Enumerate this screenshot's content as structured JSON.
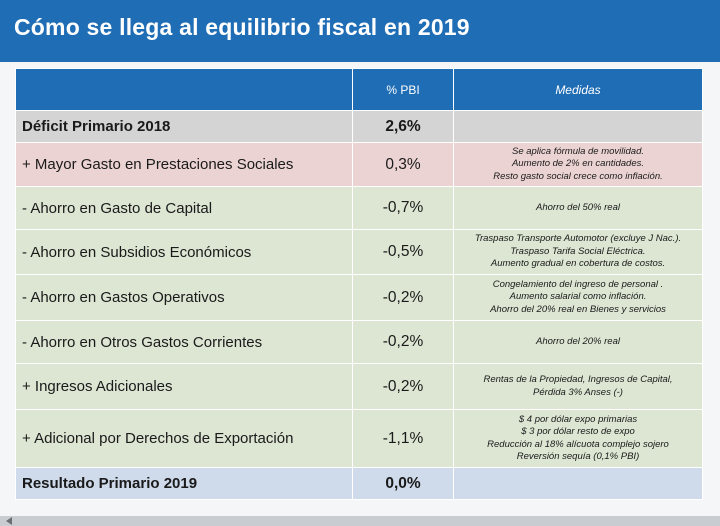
{
  "title": "Cómo se llega al equilibrio fiscal en 2019",
  "colors": {
    "title_bar": "#1f6db5",
    "header": "#1f6db5",
    "row_grey": "#d4d4d4",
    "row_pink": "#ecd3d3",
    "row_green": "#dce6d3",
    "row_blue": "#cfdaea"
  },
  "table": {
    "headers": {
      "concept": "",
      "pbi": "% PBI",
      "medidas": "Medidas"
    },
    "rows": [
      {
        "concept": "Déficit Primario 2018",
        "pbi": "2,6%",
        "medidas": []
      },
      {
        "concept": "+ Mayor Gasto en Prestaciones Sociales",
        "pbi": "0,3%",
        "medidas": [
          "Se aplica fórmula de movilidad.",
          "Aumento de 2% en cantidades.",
          "Resto gasto social crece como inflación."
        ]
      },
      {
        "concept": "- Ahorro en Gasto de Capital",
        "pbi": "-0,7%",
        "medidas": [
          "Ahorro del 50% real"
        ]
      },
      {
        "concept": "- Ahorro en Subsidios Económicos",
        "pbi": "-0,5%",
        "medidas": [
          "Traspaso Transporte Automotor (excluye J Nac.).",
          "Traspaso Tarifa Social Eléctrica.",
          "Aumento gradual en cobertura de costos."
        ]
      },
      {
        "concept": "- Ahorro en Gastos Operativos",
        "pbi": "-0,2%",
        "medidas": [
          "Congelamiento del ingreso de personal .",
          "Aumento salarial como inflación.",
          "Ahorro del 20% real en Bienes y servicios"
        ]
      },
      {
        "concept": "- Ahorro en Otros Gastos Corrientes",
        "pbi": "-0,2%",
        "medidas": [
          "Ahorro del 20% real"
        ]
      },
      {
        "concept": "+ Ingresos Adicionales",
        "pbi": "-0,2%",
        "medidas": [
          "Rentas de la Propiedad, Ingresos de Capital,",
          "Pérdida 3% Anses (-)"
        ]
      },
      {
        "concept": "+ Adicional por Derechos de Exportación",
        "pbi": "-1,1%",
        "medidas": [
          "$ 4 por dólar expo primarias",
          "$ 3 por dólar resto de expo",
          "Reducción al 18% alícuota complejo sojero",
          "Reversión sequía (0,1% PBI)"
        ]
      },
      {
        "concept": "Resultado Primario 2019",
        "pbi": "0,0%",
        "medidas": []
      }
    ]
  }
}
